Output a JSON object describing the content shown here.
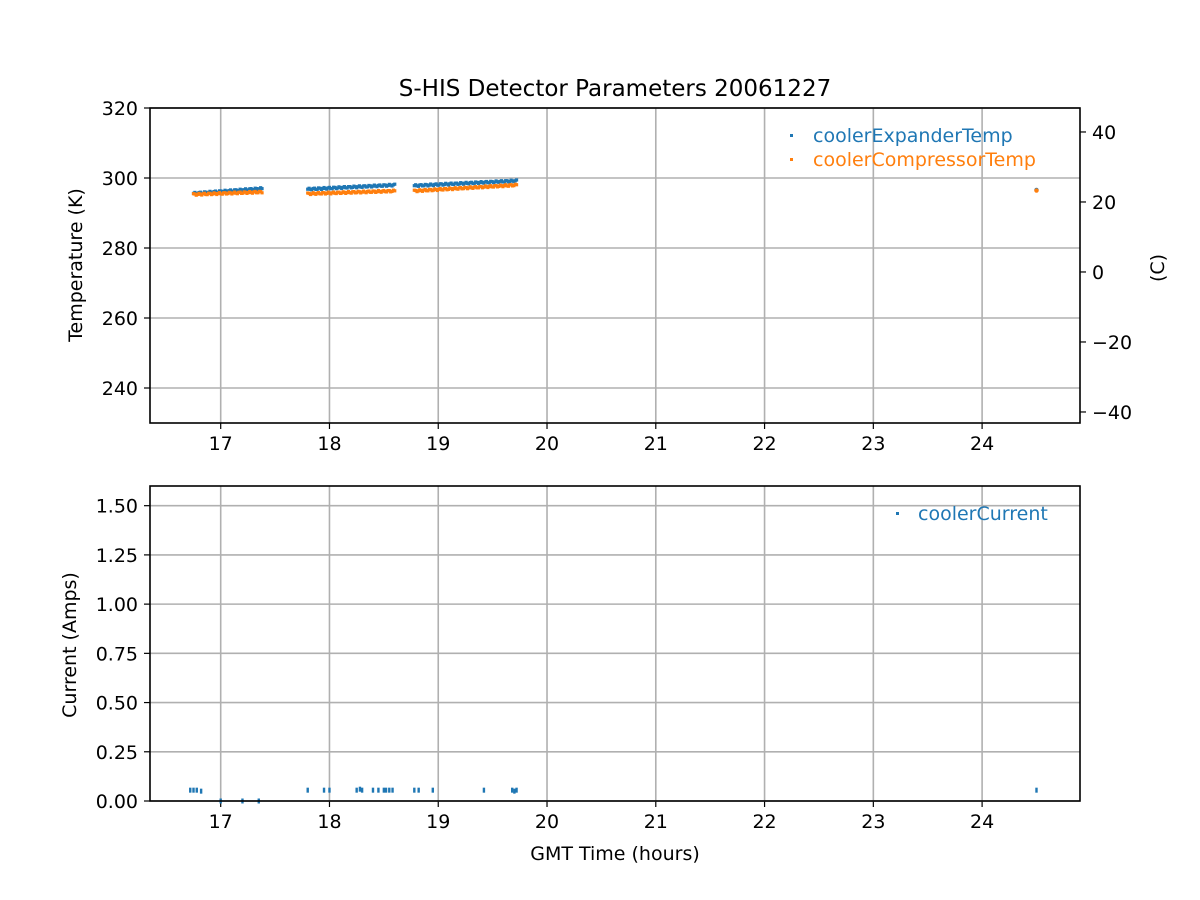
{
  "chart_data": [
    {
      "type": "scatter",
      "title": "S-HIS Detector Parameters 20061227",
      "xlabel": "",
      "ylabel": "Temperature (K)",
      "ylabel_right": "(C)",
      "xlim": [
        16.35,
        24.9
      ],
      "ylim": [
        230,
        320
      ],
      "ylim_right_celsius": [
        -43.15,
        46.85
      ],
      "xticks": [
        "17",
        "18",
        "19",
        "20",
        "21",
        "22",
        "23",
        "24"
      ],
      "yticks": [
        "240",
        "260",
        "280",
        "300",
        "320"
      ],
      "yticks_right": [
        "−40",
        "−20",
        "0",
        "20",
        "40"
      ],
      "grid": true,
      "legend_position": "top-right",
      "series": [
        {
          "name": "coolerExpanderTemp",
          "color": "#1f77b4",
          "segments": [
            {
              "x_start": 16.75,
              "x_end": 17.38,
              "y_start": 295.6,
              "y_end": 297.0
            },
            {
              "x_start": 17.8,
              "x_end": 18.6,
              "y_start": 296.8,
              "y_end": 298.0
            },
            {
              "x_start": 18.78,
              "x_end": 19.72,
              "y_start": 297.8,
              "y_end": 299.2
            }
          ],
          "points": [
            {
              "x": 24.5,
              "y": 296.6
            }
          ]
        },
        {
          "name": "coolerCompressorTemp",
          "color": "#ff7f0e",
          "segments": [
            {
              "x_start": 16.75,
              "x_end": 17.38,
              "y_start": 295.3,
              "y_end": 296.0
            },
            {
              "x_start": 17.8,
              "x_end": 18.6,
              "y_start": 295.5,
              "y_end": 296.3
            },
            {
              "x_start": 18.78,
              "x_end": 19.72,
              "y_start": 296.3,
              "y_end": 298.0
            }
          ],
          "points": [
            {
              "x": 24.5,
              "y": 296.4
            }
          ]
        }
      ]
    },
    {
      "type": "scatter",
      "title": "",
      "xlabel": "GMT Time (hours)",
      "ylabel": "Current (Amps)",
      "xlim": [
        16.35,
        24.9
      ],
      "ylim": [
        0,
        1.6
      ],
      "xticks": [
        "17",
        "18",
        "19",
        "20",
        "21",
        "22",
        "23",
        "24"
      ],
      "yticks": [
        "0.00",
        "0.25",
        "0.50",
        "0.75",
        "1.00",
        "1.25",
        "1.50"
      ],
      "grid": true,
      "legend_position": "top-right",
      "series": [
        {
          "name": "coolerCurrent",
          "color": "#1f77b4",
          "x": [
            16.72,
            16.75,
            16.78,
            16.82,
            17.0,
            17.2,
            17.35,
            17.8,
            17.95,
            18.0,
            18.25,
            18.28,
            18.3,
            18.4,
            18.45,
            18.5,
            18.52,
            18.55,
            18.58,
            18.78,
            18.82,
            18.95,
            19.42,
            19.68,
            19.7,
            19.72,
            24.5
          ],
          "y": [
            0.055,
            0.055,
            0.055,
            0.05,
            0.0,
            0.0,
            0.0,
            0.055,
            0.055,
            0.055,
            0.055,
            0.06,
            0.055,
            0.055,
            0.055,
            0.055,
            0.055,
            0.055,
            0.055,
            0.055,
            0.055,
            0.055,
            0.055,
            0.055,
            0.05,
            0.055,
            0.055
          ]
        }
      ]
    }
  ]
}
